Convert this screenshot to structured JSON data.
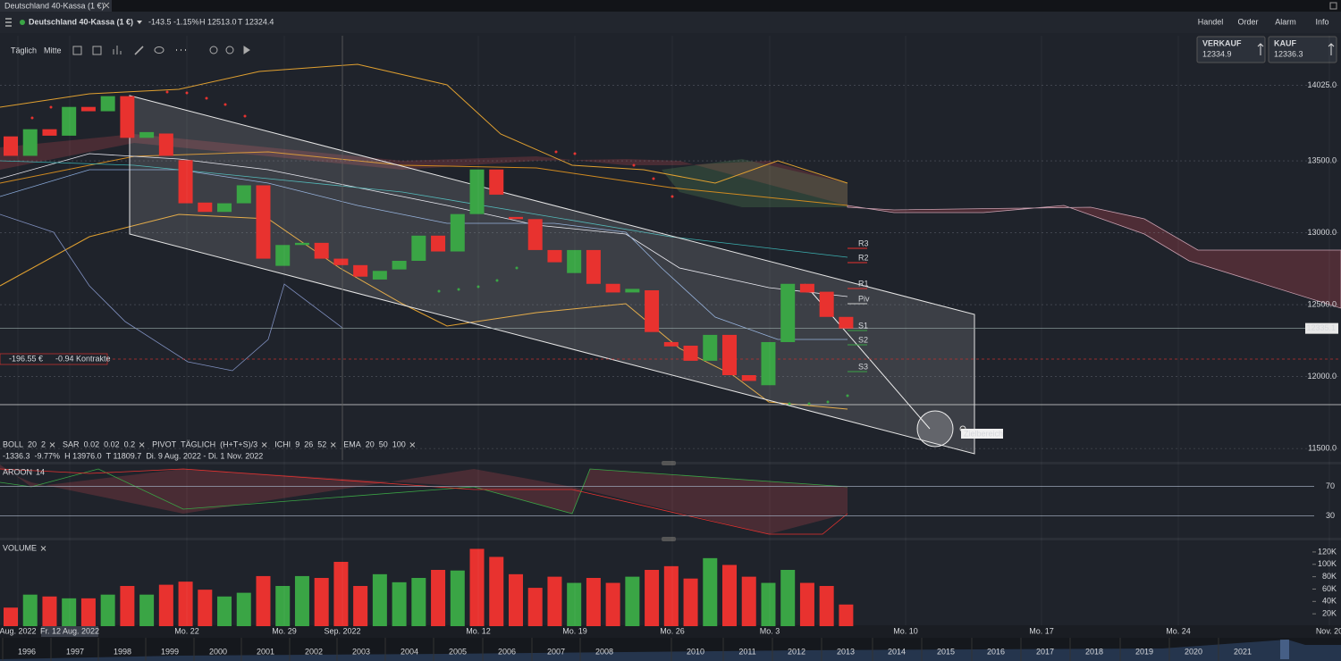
{
  "tab": {
    "title": "Deutschland 40-Kassa (1 €)"
  },
  "header": {
    "instrument": "Deutschland 40-Kassa (1 €)",
    "change": "-143.5",
    "change_pct": "-1.15%",
    "high": "H 12513.0",
    "low": "T 12324.4",
    "menu": [
      "Handel",
      "Order",
      "Alarm",
      "Info"
    ]
  },
  "toolbar": {
    "interval": "Täglich",
    "price_mode": "Mitte"
  },
  "quotes": [
    {
      "label": "VERKAUF",
      "price": "12334.9"
    },
    {
      "label": "KAUF",
      "price": "12336.3"
    }
  ],
  "position": {
    "pnl": "-196.55 €",
    "contracts": "-0.94 Kontrakte"
  },
  "annotation": "Zielbereich",
  "pivot_labels": [
    "R3",
    "R2",
    "R1",
    "Piv",
    "S1",
    "S2",
    "S3"
  ],
  "indicators": [
    {
      "name": "BOLL",
      "params": [
        "20",
        "2"
      ]
    },
    {
      "name": "SAR",
      "params": [
        "0.02",
        "0.02",
        "0.2"
      ]
    },
    {
      "name": "PIVOT",
      "params": [
        "TÄGLICH",
        "(H+T+S)/3"
      ]
    },
    {
      "name": "ICHI",
      "params": [
        "9",
        "26",
        "52"
      ]
    },
    {
      "name": "EMA",
      "params": [
        "20",
        "50",
        "100"
      ]
    }
  ],
  "stats": [
    "-1336.3",
    "-9.77%",
    "H 13976.0",
    "T 11809.7",
    "Di. 9 Aug. 2022 - Di. 1 Nov. 2022"
  ],
  "x_labels": [
    "Aug. 2022",
    "Fr. 12 Aug. 2022",
    "Mo. 22",
    "Mo. 29",
    "Sep. 2022",
    "Mo. 12",
    "Mo. 19",
    "Mo. 26",
    "Mo. 3",
    "Mo. 10",
    "Mo. 17",
    "Mo. 24",
    "Nov. 20"
  ],
  "navigator_years": [
    "1996",
    "1997",
    "1998",
    "1999",
    "2000",
    "2001",
    "2002",
    "2003",
    "2004",
    "2005",
    "2006",
    "2007",
    "2008",
    "2010",
    "2011",
    "2012",
    "2013",
    "2014",
    "2015",
    "2016",
    "2017",
    "2018",
    "2019",
    "2020",
    "2021"
  ],
  "chart_data": [
    {
      "type": "candlestick",
      "up_color": "#3aa545",
      "down_color": "#e8322f",
      "open": [
        13670,
        13535,
        13720,
        13675,
        13875,
        13845,
        13950,
        13660,
        13690,
        13505,
        13210,
        13145,
        13205,
        13330,
        12770,
        12915,
        12930,
        12820,
        12775,
        12675,
        12745,
        12805,
        12980,
        12870,
        13130,
        13440,
        13110,
        13095,
        12880,
        12720,
        12880,
        12645,
        12585,
        12600,
        12240,
        12215,
        12110,
        12290,
        12010,
        11940,
        12240,
        12645,
        12590,
        12415
      ],
      "close": [
        13535,
        13720,
        13675,
        13875,
        13845,
        13950,
        13660,
        13700,
        13535,
        13205,
        13145,
        13205,
        13330,
        12820,
        12915,
        12930,
        12820,
        12775,
        12695,
        12735,
        12805,
        12980,
        12870,
        13130,
        13440,
        13265,
        13095,
        12880,
        12795,
        12880,
        12645,
        12585,
        12610,
        12310,
        12210,
        12110,
        12290,
        12010,
        11970,
        12240,
        12645,
        12585,
        12415,
        12335
      ],
      "last_price": 12335.1,
      "ylim": [
        11420,
        14370
      ],
      "yticks": [
        {
          "value": 14025,
          "label": "14025.0"
        },
        {
          "value": 13500,
          "label": "13500.0"
        },
        {
          "value": 13000,
          "label": "13000.0"
        },
        {
          "value": 12500,
          "label": "12500.0"
        },
        {
          "value": 12000,
          "label": "12000.0"
        },
        {
          "value": 11500,
          "label": "11500.0"
        }
      ]
    },
    {
      "type": "aroon",
      "title": "AROON",
      "period": "14",
      "ylim": [
        0,
        100
      ],
      "yticks": [
        70,
        30
      ]
    },
    {
      "type": "bar",
      "title": "VOLUME",
      "values": [
        30000,
        51000,
        48000,
        45000,
        45000,
        51000,
        65000,
        51000,
        67000,
        72000,
        59000,
        48000,
        54000,
        81000,
        65000,
        81000,
        78000,
        104000,
        65000,
        84000,
        71000,
        78000,
        91000,
        90000,
        125000,
        112000,
        84000,
        62000,
        80000,
        70000,
        78000,
        70000,
        80000,
        91000,
        97000,
        77000,
        110000,
        99000,
        80000,
        70000,
        91000,
        70000,
        65000,
        35000
      ],
      "colors": [
        "#e8322f",
        "#3aa545",
        "#e8322f",
        "#3aa545",
        "#e8322f",
        "#3aa545",
        "#e8322f",
        "#3aa545",
        "#e8322f",
        "#e8322f",
        "#e8322f",
        "#3aa545",
        "#3aa545",
        "#e8322f",
        "#3aa545",
        "#3aa545",
        "#e8322f",
        "#e8322f",
        "#e8322f",
        "#3aa545",
        "#3aa545",
        "#3aa545",
        "#e8322f",
        "#3aa545",
        "#e8322f",
        "#e8322f",
        "#e8322f",
        "#e8322f",
        "#e8322f",
        "#3aa545",
        "#e8322f",
        "#e8322f",
        "#3aa545",
        "#e8322f",
        "#e8322f",
        "#e8322f",
        "#3aa545",
        "#e8322f",
        "#e8322f",
        "#3aa545",
        "#3aa545",
        "#e8322f",
        "#e8322f",
        "#e8322f"
      ],
      "ylim": [
        0,
        130000
      ],
      "yticks": [
        {
          "value": 120000,
          "label": "120K"
        },
        {
          "value": 100000,
          "label": "100K"
        },
        {
          "value": 80000,
          "label": "80K"
        },
        {
          "value": 60000,
          "label": "60K"
        },
        {
          "value": 40000,
          "label": "40K"
        },
        {
          "value": 20000,
          "label": "20K"
        }
      ]
    }
  ]
}
